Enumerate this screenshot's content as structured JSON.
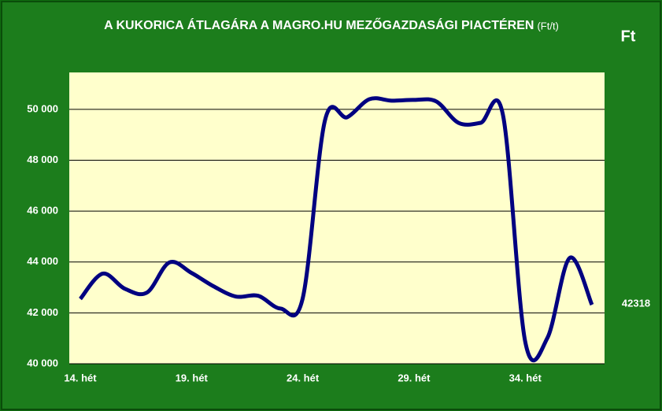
{
  "chart_data": {
    "type": "line",
    "title": "A KUKORICA ÁTLAGÁRA A MAGRO.HU MEZŐGAZDASÁGI PIACTÉREN",
    "subtitle": "(Ft/t)",
    "y_label": "Ft",
    "categories": [
      "14. hét",
      null,
      null,
      null,
      null,
      "19. hét",
      null,
      null,
      null,
      null,
      "24. hét",
      null,
      null,
      null,
      null,
      "29. hét",
      null,
      null,
      null,
      null,
      "34. hét",
      null,
      null,
      null
    ],
    "values": [
      42550,
      43540,
      42950,
      42800,
      43980,
      43570,
      43040,
      42640,
      42670,
      42170,
      42580,
      49570,
      49690,
      50400,
      50340,
      50370,
      50310,
      49470,
      49470,
      49780,
      40870,
      41020,
      44160,
      42318
    ],
    "color": "#000080",
    "ylim": [
      40000,
      51450
    ],
    "yticks": [
      {
        "value": 40000,
        "label": "40 000"
      },
      {
        "value": 42000,
        "label": "42 000"
      },
      {
        "value": 44000,
        "label": "44 000"
      },
      {
        "value": 46000,
        "label": "46 000"
      },
      {
        "value": 48000,
        "label": "48 000"
      },
      {
        "value": 50000,
        "label": "50 000"
      }
    ],
    "grid": true
  }
}
